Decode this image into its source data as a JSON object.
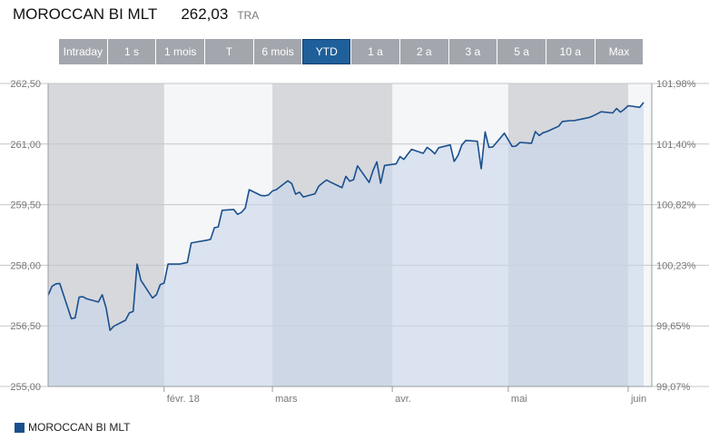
{
  "header": {
    "title": "MOROCCAN BI MLT",
    "price": "262,03",
    "exchange": "TRA"
  },
  "periods": [
    "Intraday",
    "1 s",
    "1 mois",
    "T",
    "6 mois",
    "YTD",
    "1 a",
    "2 a",
    "3 a",
    "5 a",
    "10 a",
    "Max"
  ],
  "active_period": "YTD",
  "legend": {
    "label": "MOROCCAN BI MLT"
  },
  "colors": {
    "line": "#1a4f8e",
    "fill": "#c9d6ea",
    "band": "#d6d8dc",
    "active_tab": "#1f5f9a",
    "tab": "#a3a7ad"
  },
  "chart_data": {
    "type": "area",
    "series": [
      {
        "name": "MOROCCAN BI MLT",
        "x": [
          "2018-01-02",
          "2018-01-03",
          "2018-01-04",
          "2018-01-05",
          "2018-01-08",
          "2018-01-09",
          "2018-01-10",
          "2018-01-11",
          "2018-01-12",
          "2018-01-15",
          "2018-01-16",
          "2018-01-17",
          "2018-01-18",
          "2018-01-19",
          "2018-01-22",
          "2018-01-23",
          "2018-01-24",
          "2018-01-25",
          "2018-01-26",
          "2018-01-29",
          "2018-01-30",
          "2018-01-31",
          "2018-02-01",
          "2018-02-02",
          "2018-02-05",
          "2018-02-06",
          "2018-02-07",
          "2018-02-08",
          "2018-02-09",
          "2018-02-12",
          "2018-02-13",
          "2018-02-14",
          "2018-02-15",
          "2018-02-16",
          "2018-02-19",
          "2018-02-20",
          "2018-02-21",
          "2018-02-22",
          "2018-02-23",
          "2018-02-26",
          "2018-02-27",
          "2018-02-28",
          "2018-03-01",
          "2018-03-02",
          "2018-03-05",
          "2018-03-06",
          "2018-03-07",
          "2018-03-08",
          "2018-03-09",
          "2018-03-12",
          "2018-03-13",
          "2018-03-14",
          "2018-03-15",
          "2018-03-16",
          "2018-03-19",
          "2018-03-20",
          "2018-03-21",
          "2018-03-22",
          "2018-03-23",
          "2018-03-26",
          "2018-03-27",
          "2018-03-28",
          "2018-03-29",
          "2018-03-30",
          "2018-04-02",
          "2018-04-03",
          "2018-04-04",
          "2018-04-05",
          "2018-04-06",
          "2018-04-09",
          "2018-04-10",
          "2018-04-11",
          "2018-04-12",
          "2018-04-13",
          "2018-04-16",
          "2018-04-17",
          "2018-04-18",
          "2018-04-19",
          "2018-04-20",
          "2018-04-23",
          "2018-04-24",
          "2018-04-25",
          "2018-04-26",
          "2018-04-27",
          "2018-04-30",
          "2018-05-02",
          "2018-05-03",
          "2018-05-04",
          "2018-05-07",
          "2018-05-08",
          "2018-05-09",
          "2018-05-10",
          "2018-05-11",
          "2018-05-14",
          "2018-05-15",
          "2018-05-16",
          "2018-05-17",
          "2018-05-18",
          "2018-05-21",
          "2018-05-22",
          "2018-05-23",
          "2018-05-24",
          "2018-05-25",
          "2018-05-28",
          "2018-05-29",
          "2018-05-30",
          "2018-05-31",
          "2018-06-01",
          "2018-06-04",
          "2018-06-05"
        ],
        "values": [
          257.26,
          257.48,
          257.54,
          257.55,
          256.68,
          256.7,
          257.21,
          257.22,
          257.17,
          257.09,
          257.27,
          256.94,
          256.39,
          256.49,
          256.64,
          256.82,
          256.86,
          258.03,
          257.63,
          257.19,
          257.27,
          257.52,
          257.56,
          258.03,
          258.03,
          258.05,
          258.07,
          258.55,
          258.57,
          258.62,
          258.64,
          258.93,
          258.95,
          259.36,
          259.38,
          259.26,
          259.31,
          259.42,
          259.87,
          259.73,
          259.72,
          259.74,
          259.84,
          259.87,
          260.09,
          260.02,
          259.76,
          259.81,
          259.69,
          259.77,
          259.96,
          260.04,
          260.11,
          260.06,
          259.92,
          260.2,
          260.08,
          260.12,
          260.46,
          260.05,
          260.34,
          260.56,
          260.03,
          260.47,
          260.51,
          260.69,
          260.62,
          260.75,
          260.87,
          260.77,
          260.92,
          260.85,
          260.76,
          260.91,
          260.98,
          260.57,
          260.72,
          260.98,
          261.09,
          261.07,
          260.39,
          261.3,
          260.92,
          260.93,
          261.27,
          260.94,
          260.95,
          261.04,
          261.02,
          261.31,
          261.21,
          261.28,
          261.31,
          261.44,
          261.56,
          261.57,
          261.58,
          261.58,
          261.64,
          261.66,
          261.7,
          261.75,
          261.8,
          261.77,
          261.88,
          261.79,
          261.86,
          261.95,
          261.91,
          262.03
        ]
      }
    ],
    "xaxis_ticks": [
      "févr. 18",
      "mars",
      "avr.",
      "mai",
      "juin"
    ],
    "yaxis_left": {
      "range": [
        255.0,
        262.5
      ],
      "ticks": [
        "255,00",
        "256,50",
        "258,00",
        "259,50",
        "261,00",
        "262,50"
      ]
    },
    "yaxis_right": {
      "ticks": [
        "99,07%",
        "99,65%",
        "100,23%",
        "100,82%",
        "101,40%",
        "101,98%"
      ]
    },
    "grid": true,
    "legend_position": "bottom-left"
  }
}
